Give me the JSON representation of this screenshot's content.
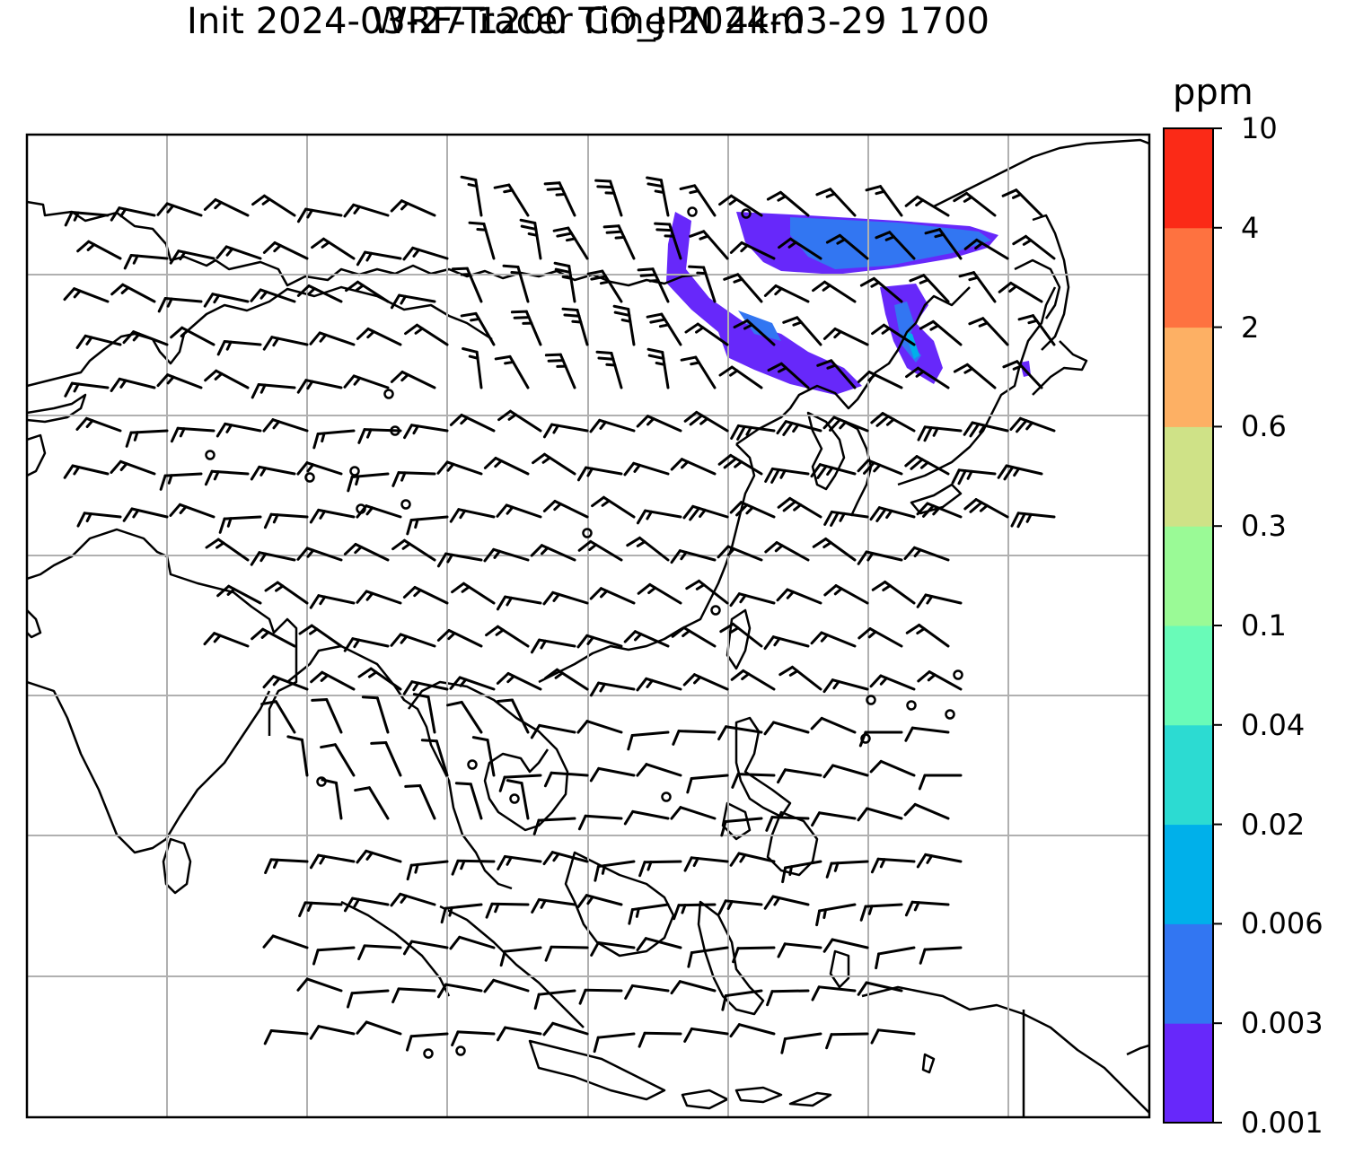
{
  "title_line1": "WRF-Tracer CO_JPN 4km",
  "title_line2": "Init 2024-03-27 1200 Time 2024-03-29 1700",
  "colorbar": {
    "unit": "ppm",
    "tick_labels": [
      "10",
      "4",
      "2",
      "0.6",
      "0.3",
      "0.1",
      "0.04",
      "0.02",
      "0.006",
      "0.003",
      "0.001"
    ],
    "colors_bottom_to_top": [
      "#6728fa",
      "#3276f2",
      "#00b0ea",
      "#2cdbd2",
      "#69fbb8",
      "#9afa96",
      "#cfe287",
      "#fdb064",
      "#fe7240",
      "#fb2a17"
    ]
  },
  "map": {
    "gridlines": true,
    "plume_colors": [
      "#6728fa",
      "#3276f2",
      "#00b0ea"
    ],
    "wind_barb_icon": "wind-barb-icon",
    "calm_icon": "calm-circle-icon"
  }
}
